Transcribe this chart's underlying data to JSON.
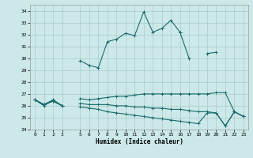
{
  "xlabel": "Humidex (Indice chaleur)",
  "bg_color": "#cce8e8",
  "grid_color": "#aacccc",
  "line_color": "#1a6b6b",
  "xlim": [
    -0.5,
    23.5
  ],
  "ylim": [
    24,
    34.5
  ],
  "yticks": [
    24,
    25,
    26,
    27,
    28,
    29,
    30,
    31,
    32,
    33,
    34
  ],
  "xticks": [
    0,
    1,
    2,
    3,
    5,
    6,
    7,
    8,
    9,
    10,
    11,
    12,
    13,
    14,
    15,
    16,
    17,
    18,
    19,
    20,
    21,
    22,
    23
  ],
  "series": [
    [
      26.5,
      26.0,
      26.5,
      26.0,
      null,
      29.8,
      29.4,
      29.2,
      31.4,
      31.6,
      32.1,
      31.9,
      33.9,
      32.2,
      32.5,
      33.2,
      32.2,
      null,
      null,
      30.4,
      30.5,
      null,
      null,
      null
    ],
    [
      26.5,
      26.1,
      26.5,
      26.0,
      null,
      null,
      null,
      null,
      null,
      null,
      null,
      null,
      null,
      null,
      null,
      null,
      32.2,
      30.0,
      null,
      null,
      null,
      null,
      null,
      null
    ],
    [
      26.5,
      26.1,
      26.4,
      26.0,
      null,
      26.6,
      26.5,
      26.6,
      26.7,
      26.8,
      26.8,
      26.9,
      27.0,
      27.0,
      27.0,
      27.0,
      27.0,
      27.0,
      27.0,
      27.0,
      27.1,
      27.1,
      25.5,
      25.1
    ],
    [
      26.5,
      26.1,
      26.4,
      26.0,
      null,
      26.2,
      26.1,
      26.1,
      26.1,
      26.0,
      26.0,
      25.9,
      25.9,
      25.8,
      25.8,
      25.7,
      25.7,
      25.6,
      25.5,
      25.5,
      25.4,
      24.3,
      25.5,
      25.1
    ],
    [
      26.5,
      26.1,
      26.4,
      26.0,
      null,
      25.9,
      25.8,
      25.7,
      25.5,
      25.4,
      25.3,
      25.2,
      25.1,
      25.0,
      24.9,
      24.8,
      24.7,
      24.6,
      24.5,
      25.4,
      25.4,
      24.3,
      25.5,
      25.1
    ]
  ]
}
